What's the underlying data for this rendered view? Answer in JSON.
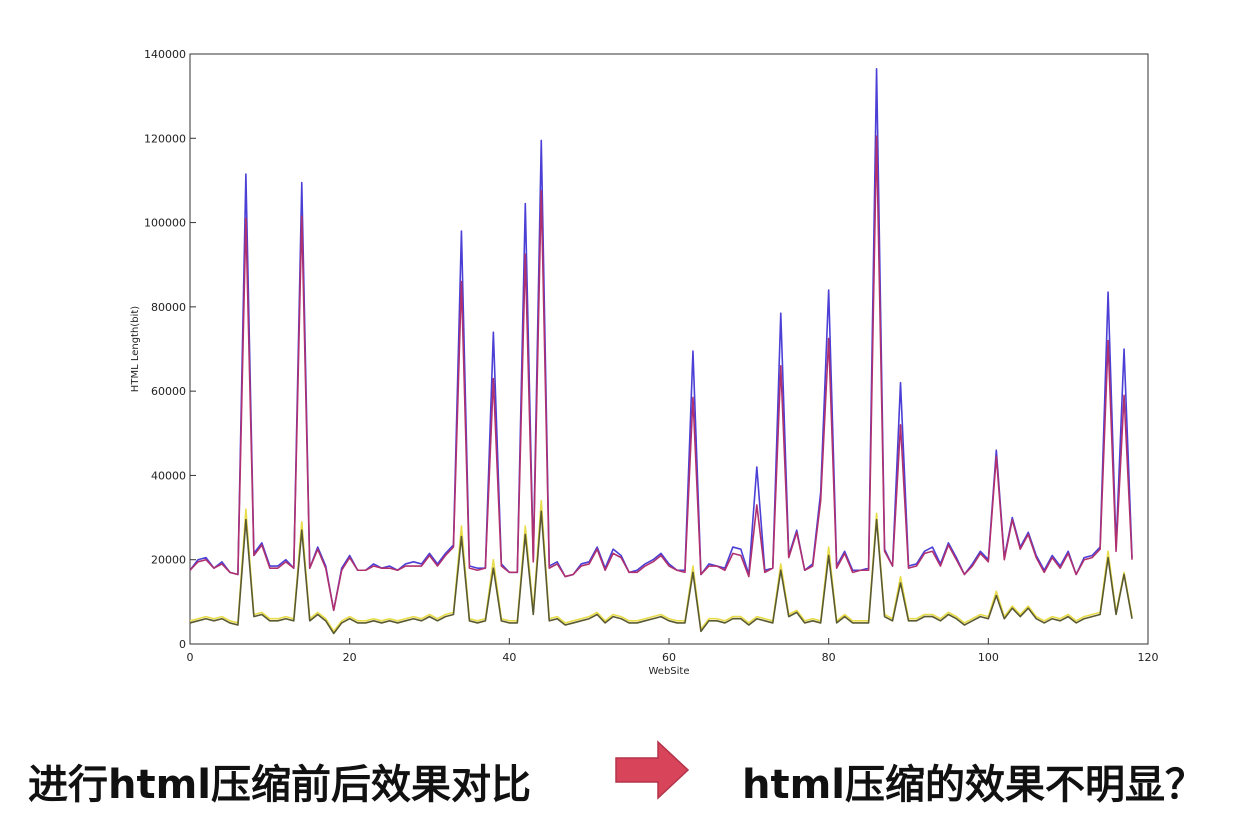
{
  "chart_data": {
    "type": "line",
    "xlabel": "WebSite",
    "ylabel": "HTML Length(bit)",
    "xlim": [
      0,
      120
    ],
    "ylim": [
      0,
      140000
    ],
    "xticks": [
      0,
      20,
      40,
      60,
      80,
      100,
      120
    ],
    "yticks": [
      0,
      20000,
      40000,
      60000,
      80000,
      100000,
      120000,
      140000
    ],
    "grid": false,
    "legend": "none",
    "x": [
      0,
      1,
      2,
      3,
      4,
      5,
      6,
      7,
      8,
      9,
      10,
      11,
      12,
      13,
      14,
      15,
      16,
      17,
      18,
      19,
      20,
      21,
      22,
      23,
      24,
      25,
      26,
      27,
      28,
      29,
      30,
      31,
      32,
      33,
      34,
      35,
      36,
      37,
      38,
      39,
      40,
      41,
      42,
      43,
      44,
      45,
      46,
      47,
      48,
      49,
      50,
      51,
      52,
      53,
      54,
      55,
      56,
      57,
      58,
      59,
      60,
      61,
      62,
      63,
      64,
      65,
      66,
      67,
      68,
      69,
      70,
      71,
      72,
      73,
      74,
      75,
      76,
      77,
      78,
      79,
      80,
      81,
      82,
      83,
      84,
      85,
      86,
      87,
      88,
      89,
      90,
      91,
      92,
      93,
      94,
      95,
      96,
      97,
      98,
      99,
      100,
      101,
      102,
      103,
      104,
      105,
      106,
      107,
      108,
      109,
      110,
      111,
      112,
      113,
      114,
      115,
      116,
      117,
      118
    ],
    "series": [
      {
        "color": "#4b3fd6",
        "values": [
          17500,
          20000,
          20500,
          18000,
          19500,
          17000,
          16500,
          111500,
          21500,
          24000,
          18500,
          18500,
          20000,
          18000,
          109500,
          18000,
          23000,
          18500,
          8000,
          18000,
          21000,
          17500,
          17500,
          19000,
          18000,
          18500,
          17500,
          19000,
          19500,
          19000,
          21500,
          19000,
          21500,
          23500,
          98000,
          18500,
          18000,
          18000,
          74000,
          19000,
          17000,
          17000,
          104500,
          20000,
          119500,
          18500,
          19500,
          16000,
          16500,
          19000,
          19500,
          23000,
          18000,
          22500,
          21000,
          17000,
          17500,
          19000,
          20000,
          21500,
          19000,
          17500,
          17500,
          69500,
          16500,
          19000,
          18500,
          18000,
          23000,
          22500,
          16500,
          42000,
          17500,
          18000,
          78500,
          21000,
          27000,
          17500,
          19000,
          36000,
          84000,
          18500,
          22000,
          17500,
          17500,
          18000,
          136500,
          22500,
          18500,
          62000,
          18500,
          19000,
          22000,
          23000,
          19000,
          24000,
          20500,
          16500,
          19000,
          22000,
          20000,
          46000,
          20500,
          30000,
          23000,
          26500,
          21000,
          17500,
          21000,
          18500,
          22000,
          16500,
          20500,
          21000,
          23000,
          83500,
          23000,
          70000,
          20500
        ]
      },
      {
        "color": "#b0316e",
        "values": [
          17500,
          19500,
          20000,
          18000,
          19000,
          17000,
          16500,
          101000,
          21000,
          23500,
          18000,
          18000,
          19500,
          18000,
          101500,
          18000,
          22500,
          18000,
          8000,
          17500,
          20500,
          17500,
          17500,
          18500,
          18000,
          18000,
          17500,
          18500,
          18500,
          18500,
          21000,
          18500,
          21000,
          23000,
          86000,
          18000,
          17500,
          18000,
          63000,
          18500,
          17000,
          17000,
          92500,
          19500,
          107500,
          18000,
          19000,
          16000,
          16500,
          18500,
          19000,
          22500,
          17500,
          21500,
          20500,
          17000,
          17000,
          18500,
          19500,
          21000,
          18500,
          17500,
          17000,
          58500,
          16500,
          18500,
          18500,
          17500,
          21500,
          21000,
          16000,
          33000,
          17000,
          18000,
          66000,
          20500,
          26500,
          17500,
          18500,
          34000,
          72500,
          18000,
          21500,
          17000,
          17500,
          17500,
          120500,
          22000,
          18500,
          52000,
          18000,
          18500,
          21500,
          22000,
          18500,
          23500,
          20000,
          16500,
          18500,
          21500,
          19500,
          44500,
          20000,
          29500,
          22500,
          26000,
          20500,
          17000,
          20500,
          18000,
          21500,
          16500,
          20000,
          20500,
          22500,
          72000,
          22000,
          59000,
          20000
        ]
      },
      {
        "color": "#e8dc4a",
        "values": [
          5500,
          6000,
          6500,
          6000,
          6500,
          5500,
          5000,
          32000,
          7000,
          7500,
          6000,
          6000,
          6500,
          6000,
          29000,
          6000,
          7500,
          6000,
          3000,
          5500,
          6500,
          5500,
          5500,
          6000,
          5500,
          6000,
          5500,
          6000,
          6500,
          6000,
          7000,
          6000,
          7000,
          7500,
          28000,
          6000,
          5500,
          6000,
          20000,
          6000,
          5500,
          5500,
          28000,
          8000,
          34000,
          6000,
          6500,
          5000,
          5500,
          6000,
          6500,
          7500,
          5500,
          7000,
          6500,
          5500,
          5500,
          6000,
          6500,
          7000,
          6000,
          5500,
          5500,
          18500,
          3500,
          6000,
          6000,
          5500,
          6500,
          6500,
          5000,
          6500,
          6000,
          5500,
          19000,
          7000,
          8000,
          5500,
          6000,
          5500,
          23000,
          5500,
          7000,
          5500,
          5500,
          5500,
          31000,
          7000,
          6000,
          16000,
          6000,
          6000,
          7000,
          7000,
          6000,
          7500,
          6500,
          5000,
          6000,
          7000,
          6500,
          12500,
          6500,
          9000,
          7000,
          9000,
          6500,
          5500,
          6500,
          6000,
          7000,
          5500,
          6500,
          7000,
          7500,
          22000,
          7500,
          17000,
          6500
        ]
      },
      {
        "color": "#5a5a32",
        "values": [
          5000,
          5500,
          6000,
          5500,
          6000,
          5000,
          4500,
          29500,
          6500,
          7000,
          5500,
          5500,
          6000,
          5500,
          27000,
          5500,
          7000,
          5500,
          2500,
          5000,
          6000,
          5000,
          5000,
          5500,
          5000,
          5500,
          5000,
          5500,
          6000,
          5500,
          6500,
          5500,
          6500,
          7000,
          25500,
          5500,
          5000,
          5500,
          18000,
          5500,
          5000,
          5000,
          26000,
          7000,
          31500,
          5500,
          6000,
          4500,
          5000,
          5500,
          6000,
          7000,
          5000,
          6500,
          6000,
          5000,
          5000,
          5500,
          6000,
          6500,
          5500,
          5000,
          5000,
          17000,
          3000,
          5500,
          5500,
          5000,
          6000,
          6000,
          4500,
          6000,
          5500,
          5000,
          17500,
          6500,
          7500,
          5000,
          5500,
          5000,
          21000,
          5000,
          6500,
          5000,
          5000,
          5000,
          29500,
          6500,
          5500,
          14500,
          5500,
          5500,
          6500,
          6500,
          5500,
          7000,
          6000,
          4500,
          5500,
          6500,
          6000,
          11500,
          6000,
          8500,
          6500,
          8500,
          6000,
          5000,
          6000,
          5500,
          6500,
          5000,
          6000,
          6500,
          7000,
          20500,
          7000,
          16500,
          6000
        ]
      }
    ]
  },
  "caption": {
    "left": "进行html压缩前后效果对比",
    "right": "html压缩的效果不明显？"
  },
  "colors": {
    "arrow": "#d8455b",
    "axis": "#333333"
  }
}
